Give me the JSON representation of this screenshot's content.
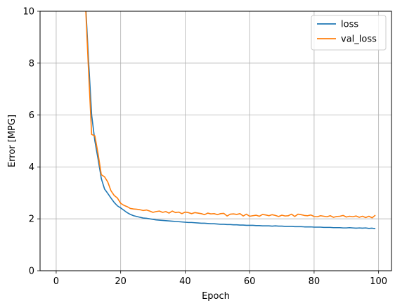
{
  "chart_data": {
    "type": "line",
    "title": "",
    "xlabel": "Epoch",
    "ylabel": "Error [MPG]",
    "xlim": [
      -5,
      104
    ],
    "ylim": [
      0,
      10
    ],
    "xticks": [
      0,
      20,
      40,
      60,
      80,
      100
    ],
    "yticks": [
      0,
      2,
      4,
      6,
      8,
      10
    ],
    "grid": true,
    "legend_position": "top-right",
    "series": [
      {
        "name": "loss",
        "color": "#1f77b4",
        "x": [
          8,
          9,
          10,
          11,
          12,
          13,
          14,
          15,
          16,
          17,
          18,
          19,
          20,
          21,
          22,
          23,
          24,
          25,
          26,
          27,
          28,
          29,
          30,
          31,
          32,
          33,
          34,
          35,
          36,
          37,
          38,
          39,
          40,
          41,
          42,
          43,
          44,
          45,
          46,
          47,
          48,
          49,
          50,
          51,
          52,
          53,
          54,
          55,
          56,
          57,
          58,
          59,
          60,
          61,
          62,
          63,
          64,
          65,
          66,
          67,
          68,
          69,
          70,
          71,
          72,
          73,
          74,
          75,
          76,
          77,
          78,
          79,
          80,
          81,
          82,
          83,
          84,
          85,
          86,
          87,
          88,
          89,
          90,
          91,
          92,
          93,
          94,
          95,
          96,
          97,
          98,
          99
        ],
        "values": [
          12.5,
          10.6,
          8.2,
          6.0,
          5.0,
          4.3,
          3.55,
          3.15,
          2.98,
          2.8,
          2.63,
          2.5,
          2.42,
          2.33,
          2.24,
          2.17,
          2.12,
          2.09,
          2.06,
          2.03,
          2.02,
          2.0,
          1.98,
          1.96,
          1.95,
          1.94,
          1.93,
          1.92,
          1.91,
          1.9,
          1.89,
          1.88,
          1.87,
          1.86,
          1.86,
          1.85,
          1.84,
          1.83,
          1.83,
          1.82,
          1.81,
          1.81,
          1.8,
          1.79,
          1.79,
          1.78,
          1.78,
          1.77,
          1.77,
          1.76,
          1.76,
          1.75,
          1.75,
          1.75,
          1.74,
          1.74,
          1.73,
          1.73,
          1.73,
          1.72,
          1.73,
          1.72,
          1.72,
          1.71,
          1.71,
          1.71,
          1.7,
          1.7,
          1.7,
          1.69,
          1.69,
          1.69,
          1.68,
          1.68,
          1.68,
          1.67,
          1.67,
          1.67,
          1.66,
          1.66,
          1.66,
          1.65,
          1.65,
          1.66,
          1.65,
          1.64,
          1.65,
          1.64,
          1.65,
          1.63,
          1.64,
          1.62
        ]
      },
      {
        "name": "val_loss",
        "color": "#ff7f0e",
        "x": [
          8,
          9,
          10,
          11,
          12,
          13,
          14,
          15,
          16,
          17,
          18,
          19,
          20,
          21,
          22,
          23,
          24,
          25,
          26,
          27,
          28,
          29,
          30,
          31,
          32,
          33,
          34,
          35,
          36,
          37,
          38,
          39,
          40,
          41,
          42,
          43,
          44,
          45,
          46,
          47,
          48,
          49,
          50,
          51,
          52,
          53,
          54,
          55,
          56,
          57,
          58,
          59,
          60,
          61,
          62,
          63,
          64,
          65,
          66,
          67,
          68,
          69,
          70,
          71,
          72,
          73,
          74,
          75,
          76,
          77,
          78,
          79,
          80,
          81,
          82,
          83,
          84,
          85,
          86,
          87,
          88,
          89,
          90,
          91,
          92,
          93,
          94,
          95,
          96,
          97,
          98,
          99
        ],
        "values": [
          12.5,
          10.5,
          7.8,
          5.25,
          5.2,
          4.5,
          3.7,
          3.62,
          3.42,
          3.08,
          2.9,
          2.8,
          2.6,
          2.52,
          2.47,
          2.4,
          2.38,
          2.37,
          2.35,
          2.32,
          2.34,
          2.3,
          2.25,
          2.28,
          2.3,
          2.25,
          2.28,
          2.22,
          2.3,
          2.24,
          2.26,
          2.2,
          2.26,
          2.24,
          2.2,
          2.24,
          2.22,
          2.2,
          2.16,
          2.22,
          2.19,
          2.2,
          2.16,
          2.2,
          2.21,
          2.11,
          2.18,
          2.19,
          2.17,
          2.2,
          2.11,
          2.18,
          2.1,
          2.12,
          2.14,
          2.1,
          2.17,
          2.15,
          2.12,
          2.16,
          2.13,
          2.09,
          2.14,
          2.11,
          2.12,
          2.18,
          2.09,
          2.18,
          2.16,
          2.13,
          2.12,
          2.15,
          2.09,
          2.08,
          2.12,
          2.1,
          2.08,
          2.12,
          2.06,
          2.09,
          2.1,
          2.13,
          2.07,
          2.1,
          2.08,
          2.11,
          2.06,
          2.1,
          2.05,
          2.1,
          2.04,
          2.14
        ]
      }
    ]
  }
}
